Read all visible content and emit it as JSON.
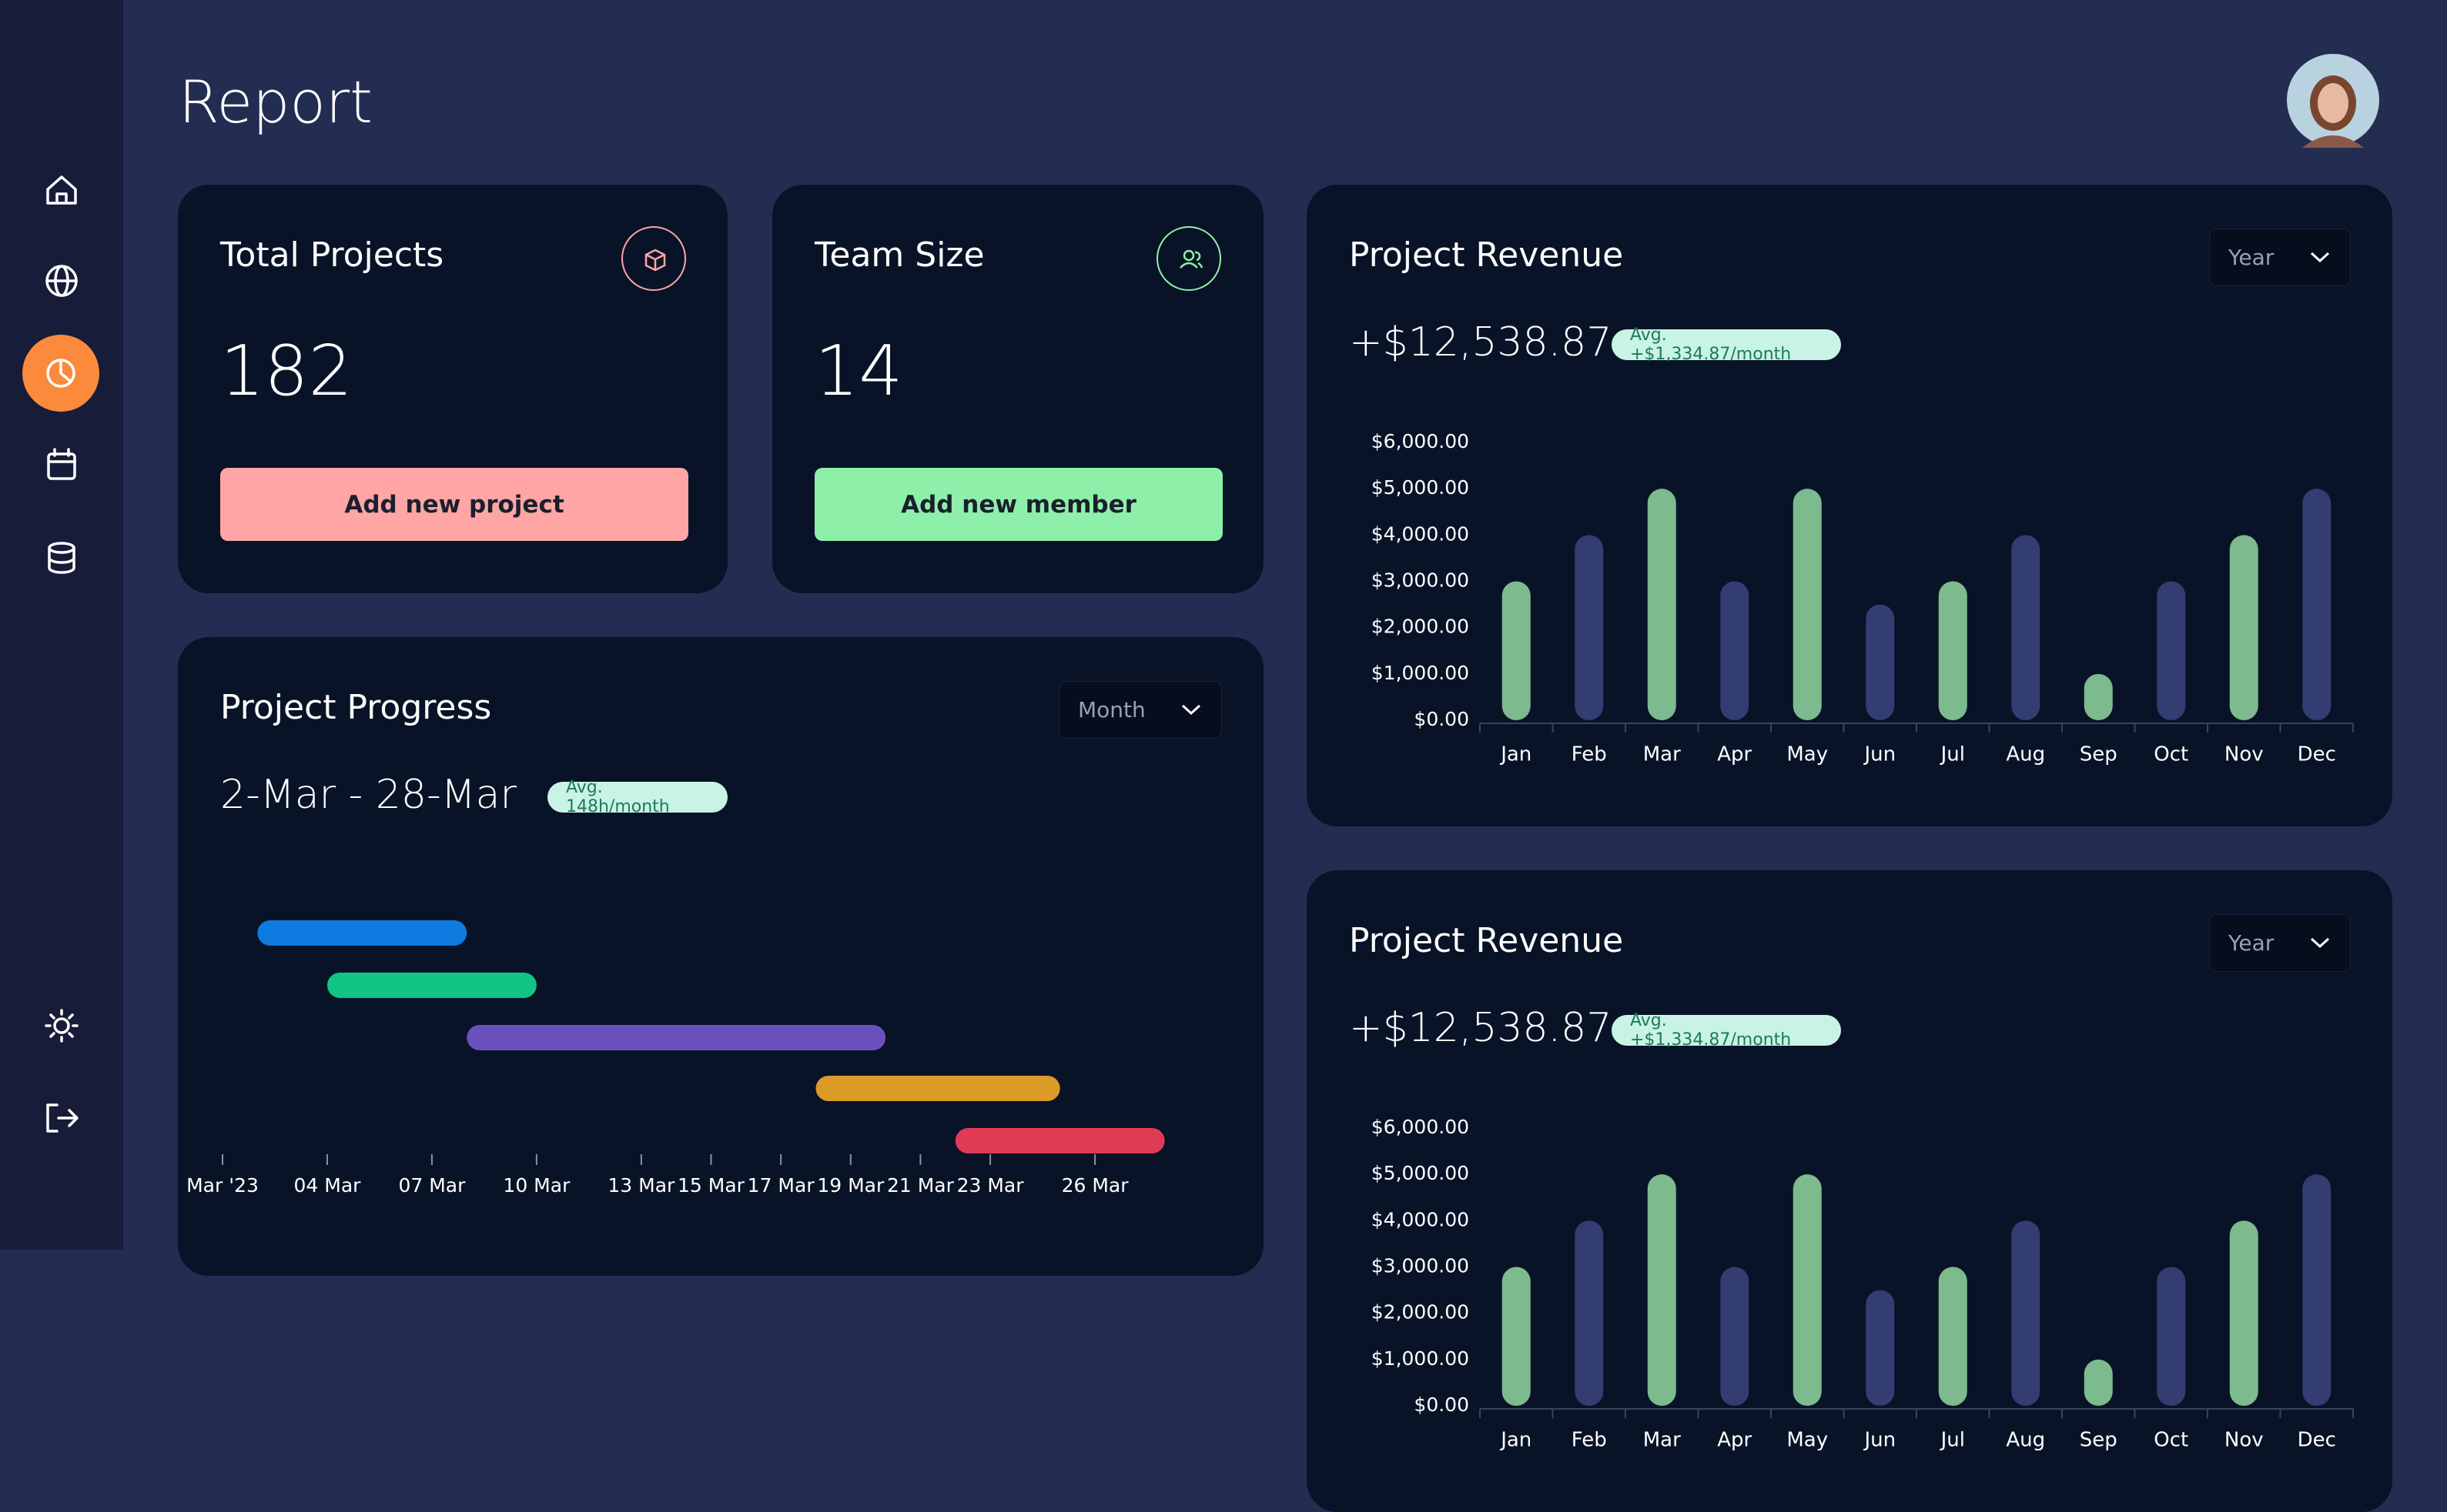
{
  "header": {
    "title": "Report"
  },
  "cards": [
    {
      "title": "Total Projects",
      "value": 182,
      "button": "Add new project"
    },
    {
      "title": "Team Size",
      "value": 14,
      "button": "Add new member"
    }
  ],
  "chart_data": [
    {
      "type": "gantt",
      "title": "Project Progress",
      "headline": "2-Mar - 28-Mar",
      "badge": "Avg. 148h/month",
      "dropdown": "Month",
      "bars": [
        {
          "start": 2,
          "end": 8,
          "color": "#0d7be0"
        },
        {
          "start": 4,
          "end": 10,
          "color": "#12c584"
        },
        {
          "start": 8,
          "end": 20,
          "color": "#6a50bd"
        },
        {
          "start": 18,
          "end": 25,
          "color": "#dc9a26"
        },
        {
          "start": 22,
          "end": 28,
          "color": "#e03a54"
        }
      ],
      "xlim": [
        1,
        29
      ],
      "xticks": [
        {
          "value": 1,
          "label": "Mar '23"
        },
        {
          "value": 4,
          "label": "04 Mar"
        },
        {
          "value": 7,
          "label": "07 Mar"
        },
        {
          "value": 10,
          "label": "10 Mar"
        },
        {
          "value": 13,
          "label": "13 Mar"
        },
        {
          "value": 15,
          "label": "15 Mar"
        },
        {
          "value": 17,
          "label": "17 Mar"
        },
        {
          "value": 19,
          "label": "19 Mar"
        },
        {
          "value": 21,
          "label": "21 Mar"
        },
        {
          "value": 23,
          "label": "23 Mar"
        },
        {
          "value": 26,
          "label": "26 Mar"
        }
      ]
    },
    {
      "type": "bar",
      "title": "Project Revenue",
      "headline": "+$12,538.87",
      "badge": "Avg. +$1,334.87/month",
      "dropdown": "Year",
      "categories": [
        "Jan",
        "Feb",
        "Mar",
        "Apr",
        "May",
        "Jun",
        "Jul",
        "Aug",
        "Sep",
        "Oct",
        "Nov",
        "Dec"
      ],
      "values": [
        3000,
        4000,
        5000,
        3000,
        5000,
        2500,
        3000,
        4000,
        1000,
        3000,
        4000,
        5000
      ],
      "colors": [
        "#7dba8e",
        "#343d72",
        "#7dba8e",
        "#343d72",
        "#7dba8e",
        "#343d72",
        "#7dba8e",
        "#343d72",
        "#7dba8e",
        "#343d72",
        "#7dba8e",
        "#343d72"
      ],
      "ylim": [
        0,
        6000
      ],
      "yticks": [
        {
          "value": 0,
          "label": "$0.00"
        },
        {
          "value": 1000,
          "label": "$1,000.00"
        },
        {
          "value": 2000,
          "label": "$2,000.00"
        },
        {
          "value": 3000,
          "label": "$3,000.00"
        },
        {
          "value": 4000,
          "label": "$4,000.00"
        },
        {
          "value": 5000,
          "label": "$5,000.00"
        },
        {
          "value": 6000,
          "label": "$6,000.00"
        }
      ]
    },
    {
      "type": "bar",
      "title": "Project Revenue",
      "headline": "+$12,538.87",
      "badge": "Avg. +$1,334.87/month",
      "dropdown": "Year",
      "categories": [
        "Jan",
        "Feb",
        "Mar",
        "Apr",
        "May",
        "Jun",
        "Jul",
        "Aug",
        "Sep",
        "Oct",
        "Nov",
        "Dec"
      ],
      "values": [
        3000,
        4000,
        5000,
        3000,
        5000,
        2500,
        3000,
        4000,
        1000,
        3000,
        4000,
        5000
      ],
      "colors": [
        "#7dba8e",
        "#343d72",
        "#7dba8e",
        "#343d72",
        "#7dba8e",
        "#343d72",
        "#7dba8e",
        "#343d72",
        "#7dba8e",
        "#343d72",
        "#7dba8e",
        "#343d72"
      ],
      "ylim": [
        0,
        6000
      ],
      "yticks": [
        {
          "value": 0,
          "label": "$0.00"
        },
        {
          "value": 1000,
          "label": "$1,000.00"
        },
        {
          "value": 2000,
          "label": "$2,000.00"
        },
        {
          "value": 3000,
          "label": "$3,000.00"
        },
        {
          "value": 4000,
          "label": "$4,000.00"
        },
        {
          "value": 5000,
          "label": "$5,000.00"
        },
        {
          "value": 6000,
          "label": "$6,000.00"
        }
      ]
    }
  ]
}
